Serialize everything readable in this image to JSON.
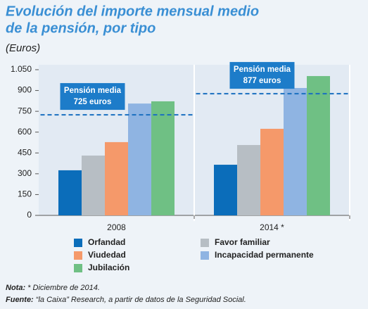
{
  "chart_data": {
    "type": "bar",
    "title": [
      "Evolución del importe mensual medio",
      "de la pensión, por tipo"
    ],
    "subtitle": "(Euros)",
    "categories": [
      "2008",
      "2014 *"
    ],
    "series": [
      {
        "name": "Orfandad",
        "color": "#0b6dba",
        "values": [
          325,
          365
        ]
      },
      {
        "name": "Favor familiar",
        "color": "#b7bec4",
        "values": [
          431,
          507
        ]
      },
      {
        "name": "Viudedad",
        "color": "#f5996a",
        "values": [
          528,
          624
        ]
      },
      {
        "name": "Incapacidad permanente",
        "color": "#8fb4e2",
        "values": [
          806,
          918
        ]
      },
      {
        "name": "Jubilación",
        "color": "#6fc084",
        "values": [
          822,
          1004
        ]
      }
    ],
    "ylim": [
      0,
      1050
    ],
    "yticks": [
      0,
      150,
      300,
      450,
      600,
      750,
      900,
      {
        "value": 1050,
        "label": "1.050"
      }
    ],
    "grid": false,
    "annotations": [
      {
        "lines": [
          "Pensión media",
          "725 euros"
        ],
        "value": 725,
        "category": 0
      },
      {
        "lines": [
          "Pensión media",
          "877 euros"
        ],
        "value": 877,
        "category": 1
      }
    ],
    "notes": [
      {
        "label": "Nota:",
        "text": "* Diciembre de 2014."
      },
      {
        "label": "Fuente:",
        "text": "“la Caixa” Research, a partir de datos de la Seguridad Social."
      }
    ]
  }
}
